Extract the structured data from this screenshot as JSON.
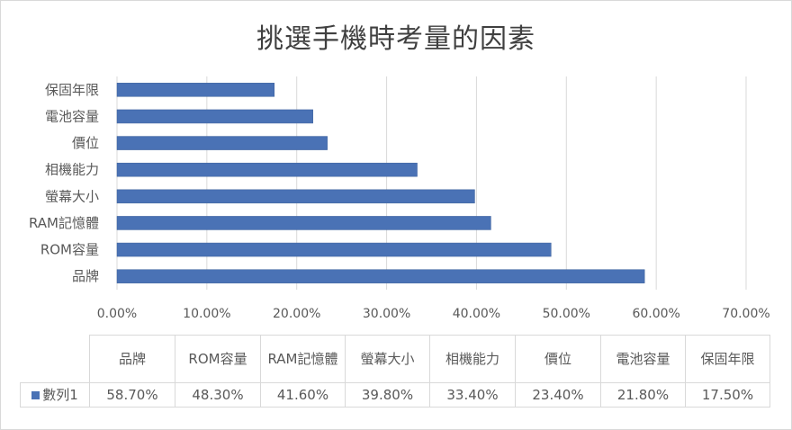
{
  "chart_data": {
    "type": "bar",
    "orientation": "horizontal",
    "title": "挑選手機時考量的因素",
    "categories": [
      "品牌",
      "ROM容量",
      "RAM記憶體",
      "螢幕大小",
      "相機能力",
      "價位",
      "電池容量",
      "保固年限"
    ],
    "axis_categories": [
      "保固年限",
      "電池容量",
      "價位",
      "相機能力",
      "螢幕大小",
      "RAM記憶體",
      "ROM容量",
      "品牌"
    ],
    "table_header_labels": [
      "品牌",
      "ROM容量",
      "RAM記憶體",
      "螢幕大小",
      "相機能力",
      "價位",
      "電池容量",
      "保固年限"
    ],
    "series": [
      {
        "name": "數列1",
        "values": [
          0.587,
          0.483,
          0.416,
          0.398,
          0.334,
          0.234,
          0.218,
          0.175
        ],
        "value_labels": [
          "58.70%",
          "48.30%",
          "41.60%",
          "39.80%",
          "33.40%",
          "23.40%",
          "21.80%",
          "17.50%"
        ]
      }
    ],
    "xlim": [
      0,
      0.7
    ],
    "x_ticks": [
      "0.00%",
      "10.00%",
      "20.00%",
      "30.00%",
      "40.00%",
      "50.00%",
      "60.00%",
      "70.00%"
    ],
    "x_tick_values": [
      0,
      0.1,
      0.2,
      0.3,
      0.4,
      0.5,
      0.6,
      0.7
    ],
    "grid": true,
    "legend": "data-table",
    "bar_color": "#4a72b5"
  }
}
